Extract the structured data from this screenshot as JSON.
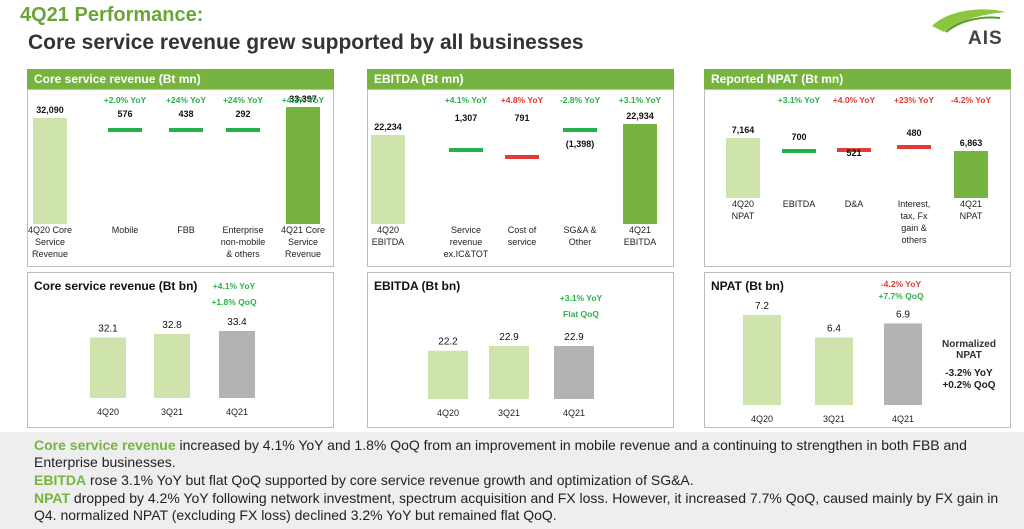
{
  "header": {
    "title_line1": "4Q21 Performance:",
    "title_line2": "Core service revenue grew supported by all businesses",
    "logo_text": "AIS"
  },
  "colors": {
    "accent_green": "#77b43f",
    "dark_green": "#6ba539",
    "bar_light": "#cfe3ad",
    "bar_dark": "#77b43f",
    "bar_gray": "#b3b3b3",
    "pos_text": "#2bb04a",
    "neg_text": "#e53935",
    "pos_bar": "#22b14c",
    "neg_bar": "#e53935"
  },
  "panels": {
    "core_wf_title": "Core service revenue (Bt mn)",
    "ebitda_wf_title": "EBITDA (Bt mn)",
    "npat_wf_title": "Reported NPAT (Bt mn)",
    "core_bn_title": "Core service revenue (Bt bn)",
    "ebitda_bn_title": "EBITDA (Bt bn)",
    "npat_bn_title": "NPAT (Bt bn)"
  },
  "npat_note": {
    "title": "Normalized NPAT",
    "yoy": "-3.2% YoY",
    "qoq": "+0.2% QoQ"
  },
  "footer": {
    "p1_lead": "Core service revenue",
    "p1_text": " increased by 4.1% YoY and 1.8% QoQ from an improvement in mobile revenue and a continuing to strengthen in both FBB and Enterprise businesses.",
    "p2_lead": "EBITDA",
    "p2_text": " rose 3.1% YoY but flat QoQ supported by core service revenue growth and optimization of SG&A.",
    "p3_lead": "NPAT",
    "p3_text": " dropped by 4.2% YoY following network investment, spectrum acquisition and FX loss. However, it increased 7.7% QoQ, caused mainly by FX gain in Q4. normalized NPAT (excluding FX loss) declined 3.2% YoY but remained flat QoQ."
  },
  "chart_data": [
    {
      "id": "core_wf",
      "type": "bar",
      "title": "Core service revenue (Bt mn)",
      "categories": [
        [
          "4Q20 Core",
          "Service",
          "Revenue"
        ],
        [
          "Mobile"
        ],
        [
          "FBB"
        ],
        [
          "Enterprise",
          "non-mobile",
          "& others"
        ],
        [
          "4Q21 Core",
          "Service",
          "Revenue"
        ]
      ],
      "values": [
        32090,
        576,
        438,
        292,
        33397
      ],
      "value_labels": [
        "32,090",
        "576",
        "438",
        "292",
        "33,397"
      ],
      "kinds": [
        "total-light",
        "up",
        "up",
        "up",
        "total-dark"
      ],
      "changes": [
        "",
        "+2.0% YoY",
        "+24% YoY",
        "+24% YoY",
        "+4.1% YoY"
      ],
      "change_signs": [
        "",
        "pos",
        "pos",
        "pos",
        "pos"
      ]
    },
    {
      "id": "ebitda_wf",
      "type": "bar",
      "title": "EBITDA (Bt mn)",
      "categories": [
        [
          "4Q20",
          "EBITDA"
        ],
        [
          "Service",
          "revenue",
          "ex.IC&TOT"
        ],
        [
          "Cost of",
          "service"
        ],
        [
          "SG&A &",
          "Other"
        ],
        [
          "4Q21",
          "EBITDA"
        ]
      ],
      "values": [
        22234,
        1307,
        791,
        -1398,
        22934
      ],
      "value_labels": [
        "22,234",
        "1,307",
        "791",
        "(1,398)",
        "22,934"
      ],
      "kinds": [
        "total-light",
        "up",
        "down",
        "up",
        "total-dark"
      ],
      "changes": [
        "",
        "+4.1% YoY",
        "+4.8% YoY",
        "-2.8% YoY",
        "+3.1% YoY"
      ],
      "change_signs": [
        "",
        "pos",
        "neg",
        "pos",
        "pos"
      ]
    },
    {
      "id": "npat_wf",
      "type": "bar",
      "title": "Reported NPAT (Bt mn)",
      "categories": [
        [
          "4Q20",
          "NPAT"
        ],
        [
          "EBITDA"
        ],
        [
          "D&A"
        ],
        [
          "Interest,",
          "tax, Fx",
          "gain &",
          "others"
        ],
        [
          "4Q21",
          "NPAT"
        ]
      ],
      "values": [
        7164,
        700,
        521,
        480,
        6863
      ],
      "value_labels": [
        "7,164",
        "700",
        "521",
        "480",
        "6,863"
      ],
      "kinds": [
        "total-light",
        "up",
        "down",
        "down",
        "total-dark"
      ],
      "changes": [
        "",
        "+3.1% YoY",
        "+4.0% YoY",
        "+23% YoY",
        "-4.2% YoY"
      ],
      "change_signs": [
        "",
        "pos",
        "neg",
        "neg",
        "neg"
      ]
    },
    {
      "id": "core_bn",
      "type": "bar",
      "title": "Core service revenue (Bt bn)",
      "categories": [
        "4Q20",
        "3Q21",
        "4Q21"
      ],
      "values": [
        32.1,
        32.8,
        33.4
      ],
      "value_labels": [
        "32.1",
        "32.8",
        "33.4"
      ],
      "annotations": [
        {
          "text": "+4.1% YoY",
          "sign": "pos"
        },
        {
          "text": "+1.8% QoQ",
          "sign": "pos"
        }
      ]
    },
    {
      "id": "ebitda_bn",
      "type": "bar",
      "title": "EBITDA (Bt bn)",
      "categories": [
        "4Q20",
        "3Q21",
        "4Q21"
      ],
      "values": [
        22.2,
        22.9,
        22.9
      ],
      "value_labels": [
        "22.2",
        "22.9",
        "22.9"
      ],
      "annotations": [
        {
          "text": "+3.1% YoY",
          "sign": "pos"
        },
        {
          "text": "Flat QoQ",
          "sign": "pos"
        }
      ]
    },
    {
      "id": "npat_bn",
      "type": "bar",
      "title": "NPAT (Bt bn)",
      "categories": [
        "4Q20",
        "3Q21",
        "4Q21"
      ],
      "values": [
        7.2,
        6.4,
        6.9
      ],
      "value_labels": [
        "7.2",
        "6.4",
        "6.9"
      ],
      "annotations": [
        {
          "text": "-4.2% YoY",
          "sign": "neg"
        },
        {
          "text": "+7.7% QoQ",
          "sign": "pos"
        }
      ]
    }
  ]
}
